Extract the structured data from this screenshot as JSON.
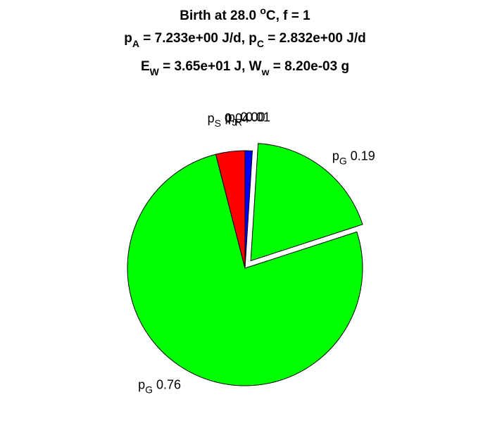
{
  "chart_data": {
    "type": "pie",
    "title": [
      [
        {
          "text": "Birth at 28.0 "
        },
        {
          "sup": "o"
        },
        {
          "text": "C, f = 1"
        }
      ],
      [
        {
          "text": "p"
        },
        {
          "sub": "A"
        },
        {
          "text": " = 7.233e+00 J/d, p"
        },
        {
          "sub": "C"
        },
        {
          "text": " = 2.832e+00 J/d"
        }
      ],
      [
        {
          "text": "E"
        },
        {
          "sub": "W"
        },
        {
          "text": " = 3.65e+01 J, W"
        },
        {
          "sub": "w"
        },
        {
          "text": " = 8.20e-03 g"
        }
      ]
    ],
    "names": [
      {
        "base": "p",
        "sub": "J"
      },
      {
        "base": "p",
        "sub": "R"
      },
      {
        "base": "p",
        "sub": "G"
      },
      {
        "base": "p",
        "sub": "G"
      },
      {
        "base": "p",
        "sub": "S"
      }
    ],
    "values": [
      0,
      0.01,
      0.19,
      0.76,
      0.04
    ],
    "value_labels": [
      "0.00",
      "0.01",
      "0.19",
      "0.76",
      "0.04"
    ],
    "colors": [
      null,
      "#0000ff",
      "#00ff00",
      "#00ff00",
      "#ff0000"
    ],
    "explode": [
      false,
      false,
      true,
      false,
      false
    ]
  }
}
